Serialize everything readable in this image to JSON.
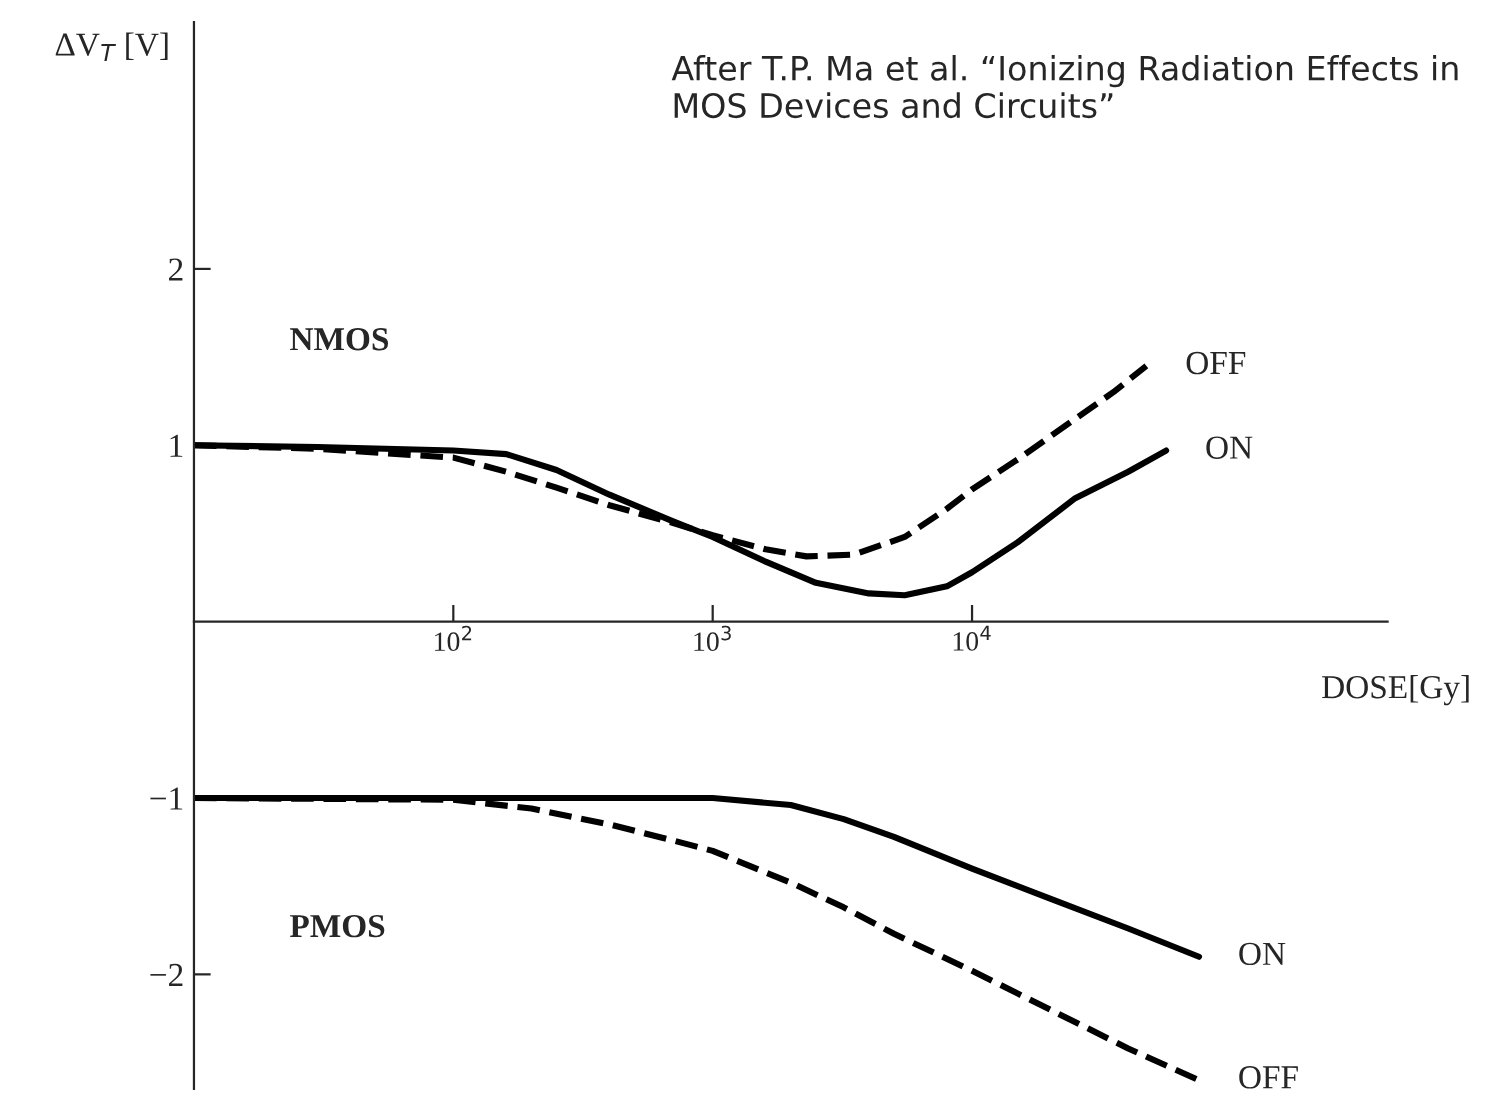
{
  "chart_data": {
    "type": "line",
    "title": "After T.P. Ma et al. “Ionizing Radiation Effects in MOS Devices and Circuits”",
    "xlabel": "DOSE[Gy]",
    "ylabel": "ΔV$_{T}$ [V]",
    "log": "x",
    "xlim": [
      10,
      400000
    ],
    "ylim": [
      -2.65,
      3.4
    ],
    "xticks": [
      {
        "value": 100,
        "label": "10$^{2}$"
      },
      {
        "value": 1000,
        "label": "10$^{3}$"
      },
      {
        "value": 10000,
        "label": "10$^{4}$"
      }
    ],
    "yticks": [
      {
        "value": -2,
        "label": "−2"
      },
      {
        "value": -1,
        "label": "−1"
      },
      1,
      2
    ],
    "annotations": [
      "NMOS",
      "PMOS"
    ],
    "series": [
      {
        "name": "ON",
        "color": "#000000",
        "line_style": "solid",
        "x": [
          10,
          30,
          100,
          160,
          250,
          400,
          700,
          1000,
          1600,
          2500,
          4000,
          5500,
          8000,
          10000,
          15000,
          25000,
          40000,
          56000
        ],
        "values": [
          1.0,
          0.99,
          0.97,
          0.95,
          0.86,
          0.72,
          0.57,
          0.48,
          0.34,
          0.22,
          0.16,
          0.15,
          0.2,
          0.28,
          0.45,
          0.7,
          0.85,
          0.97
        ]
      },
      {
        "name": "OFF",
        "color": "#000000",
        "line_style": "dashed",
        "x": [
          10,
          30,
          100,
          160,
          250,
          400,
          700,
          1000,
          1600,
          2300,
          3500,
          5500,
          8000,
          10000,
          15000,
          25000,
          35000,
          47000
        ],
        "values": [
          1.0,
          0.98,
          0.93,
          0.85,
          0.76,
          0.66,
          0.56,
          0.49,
          0.41,
          0.37,
          0.38,
          0.48,
          0.64,
          0.75,
          0.92,
          1.15,
          1.3,
          1.45
        ]
      },
      {
        "name": "ON",
        "color": "#000000",
        "line_style": "solid",
        "x": [
          10,
          100,
          300,
          1000,
          2000,
          3200,
          5000,
          10000,
          20000,
          40000,
          75000
        ],
        "values": [
          -1.0,
          -1.0,
          -1.0,
          -1.0,
          -1.04,
          -1.12,
          -1.22,
          -1.4,
          -1.57,
          -1.74,
          -1.9
        ]
      },
      {
        "name": "OFF",
        "color": "#000000",
        "line_style": "dashed",
        "x": [
          10,
          100,
          200,
          400,
          700,
          1000,
          2000,
          3200,
          5000,
          10000,
          20000,
          40000,
          75000
        ],
        "values": [
          -1.0,
          -1.01,
          -1.06,
          -1.15,
          -1.24,
          -1.3,
          -1.48,
          -1.62,
          -1.77,
          -1.98,
          -2.2,
          -2.42,
          -2.6
        ]
      }
    ]
  }
}
